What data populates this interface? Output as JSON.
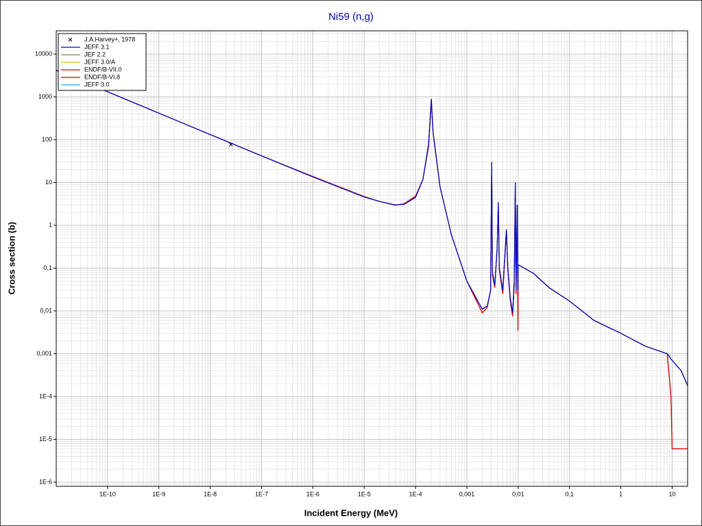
{
  "chart_data": {
    "type": "line",
    "title": "Ni59 (n,g)",
    "x_label": "Incident Energy (MeV)",
    "y_label": "Cross section (b)",
    "x_scale": "log",
    "y_scale": "log",
    "grid": true,
    "minor_grid": true,
    "legend": "upper left",
    "xlim": [
      1e-11,
      20
    ],
    "ylim": [
      8e-07,
      35000
    ],
    "xticks": [
      {
        "value": 1e-10,
        "label": "1E-10"
      },
      {
        "value": 1e-09,
        "label": "1E-9"
      },
      {
        "value": 1e-08,
        "label": "1E-8"
      },
      {
        "value": 1e-07,
        "label": "1E-7"
      },
      {
        "value": 1e-06,
        "label": "1E-6"
      },
      {
        "value": 1e-05,
        "label": "1E-5"
      },
      {
        "value": 0.0001,
        "label": "1E-4"
      },
      {
        "value": 0.001,
        "label": "0,001"
      },
      {
        "value": 0.01,
        "label": "0,01"
      },
      {
        "value": 0.1,
        "label": "0,1"
      },
      1,
      10
    ],
    "yticks": [
      {
        "value": 1e-06,
        "label": "1E-6"
      },
      {
        "value": 1e-05,
        "label": "1E-5"
      },
      {
        "value": 0.0001,
        "label": "1E-4"
      },
      {
        "value": 0.001,
        "label": "0,001"
      },
      {
        "value": 0.01,
        "label": "0,01"
      },
      {
        "value": 0.1,
        "label": "0,1"
      },
      1,
      10,
      100,
      1000,
      10000
    ],
    "points": {
      "name": "J.A.Harvey+, 1978",
      "color": "#000000",
      "marker": "x",
      "x": [
        2.53e-08
      ],
      "values": [
        77
      ]
    },
    "x": [
      1e-11,
      1e-10,
      1e-09,
      1e-08,
      1e-07,
      1e-06,
      1e-05,
      2e-05,
      4e-05,
      6e-05,
      0.0001,
      0.00014,
      0.00018,
      0.000203,
      0.00022,
      0.0003,
      0.0005,
      0.001,
      0.002,
      0.0025,
      0.0029,
      0.00305,
      0.00315,
      0.0035,
      0.0039,
      0.0041,
      0.0043,
      0.005,
      0.0059,
      0.0063,
      0.007,
      0.0078,
      0.0084,
      0.0088,
      0.0091,
      0.0096,
      0.0099,
      0.01,
      0.02,
      0.04,
      0.1,
      0.3,
      1,
      3,
      8,
      9.5,
      10,
      15,
      20
    ],
    "series": [
      {
        "name": "JEFF 3.1",
        "color": "#0000cd",
        "values": [
          4200,
          1320,
          418,
          132,
          42,
          13.5,
          4.6,
          3.6,
          3.0,
          3.1,
          4.5,
          12,
          80,
          900,
          150,
          8,
          0.6,
          0.05,
          0.011,
          0.013,
          0.03,
          30,
          0.08,
          0.04,
          0.3,
          3.5,
          0.1,
          0.03,
          0.8,
          0.1,
          0.02,
          0.009,
          0.05,
          10,
          0.03,
          3,
          0.03,
          0.12,
          0.075,
          0.035,
          0.017,
          0.006,
          0.003,
          0.0015,
          0.001,
          0.00075,
          0.0007,
          0.0004,
          0.00018
        ]
      },
      {
        "name": "JEF 2.2",
        "color": "#808060",
        "values": [
          4200,
          1320,
          418,
          132,
          42,
          13.5,
          4.6,
          3.6,
          3.0,
          3.1,
          4.5,
          12,
          80,
          900,
          150,
          8,
          0.6,
          0.05,
          0.011,
          0.013,
          0.03,
          30,
          0.08,
          0.04,
          0.3,
          3.5,
          0.1,
          0.03,
          0.8,
          0.1,
          0.02,
          0.009,
          0.05,
          10,
          0.03,
          3,
          0.03,
          0.12,
          0.075,
          0.035,
          0.017,
          0.006,
          0.003,
          0.0015,
          0.001,
          0.00075,
          0.0007,
          0.0004,
          0.00018
        ]
      },
      {
        "name": "JEFF 3.0/A",
        "color": "#e0c000",
        "values": [
          4200,
          1320,
          418,
          132,
          42,
          13.5,
          4.6,
          3.6,
          3.0,
          3.1,
          4.5,
          12,
          80,
          900,
          150,
          8,
          0.6,
          0.05,
          0.011,
          0.013,
          0.03,
          30,
          0.08,
          0.04,
          0.3,
          3.5,
          0.1,
          0.03,
          0.8,
          0.1,
          0.02,
          0.009,
          0.05,
          10,
          0.03,
          3,
          0.03,
          0.12,
          0.075,
          0.035,
          0.017,
          0.006,
          0.003,
          0.0015,
          0.001,
          0.00075,
          0.0007,
          0.0004,
          0.00018
        ]
      },
      {
        "name": "ENDF/B-VII.0",
        "color": "#e00000",
        "values": [
          4200,
          1320,
          418,
          132,
          42,
          13.8,
          4.7,
          3.6,
          2.95,
          3.2,
          4.8,
          12,
          70,
          800,
          140,
          8,
          0.6,
          0.05,
          0.009,
          0.012,
          0.03,
          25,
          0.07,
          0.035,
          0.3,
          3,
          0.09,
          0.025,
          0.7,
          0.09,
          0.018,
          0.0075,
          0.04,
          8,
          0.025,
          2.5,
          0.0035,
          0.12,
          0.075,
          0.035,
          0.017,
          0.006,
          0.003,
          0.0015,
          0.001,
          0.0001,
          6e-06,
          6e-06,
          6e-06
        ]
      },
      {
        "name": "ENDF/B-VI.8",
        "color": "#c00000",
        "values": [
          4200,
          1320,
          418,
          132,
          42,
          13.8,
          4.7,
          3.6,
          2.95,
          3.2,
          4.8,
          12,
          70,
          800,
          140,
          8,
          0.6,
          0.05,
          0.009,
          0.012,
          0.03,
          25,
          0.07,
          0.035,
          0.3,
          3,
          0.09,
          0.025,
          0.7,
          0.09,
          0.018,
          0.0075,
          0.04,
          8,
          0.025,
          2.5,
          0.0035,
          0.12,
          0.075,
          0.035,
          0.017,
          0.006,
          0.003,
          0.0015,
          0.001,
          0.0001,
          6e-06,
          6e-06,
          6e-06
        ]
      },
      {
        "name": "JEFF 3.0",
        "color": "#00b8e0",
        "values": [
          4200,
          1320,
          418,
          132,
          42,
          13.5,
          4.6,
          3.6,
          3.0,
          3.1,
          4.5,
          12,
          80,
          900,
          150,
          8,
          0.6,
          0.05,
          0.011,
          0.013,
          0.03,
          30,
          0.08,
          0.04,
          0.3,
          3.5,
          0.1,
          0.03,
          0.8,
          0.1,
          0.02,
          0.009,
          0.05,
          10,
          0.03,
          3,
          0.03,
          0.12,
          0.075,
          0.035,
          0.017,
          0.006,
          0.003,
          0.0015,
          0.001,
          0.00075,
          0.0007,
          0.0004,
          0.00018
        ]
      }
    ]
  }
}
